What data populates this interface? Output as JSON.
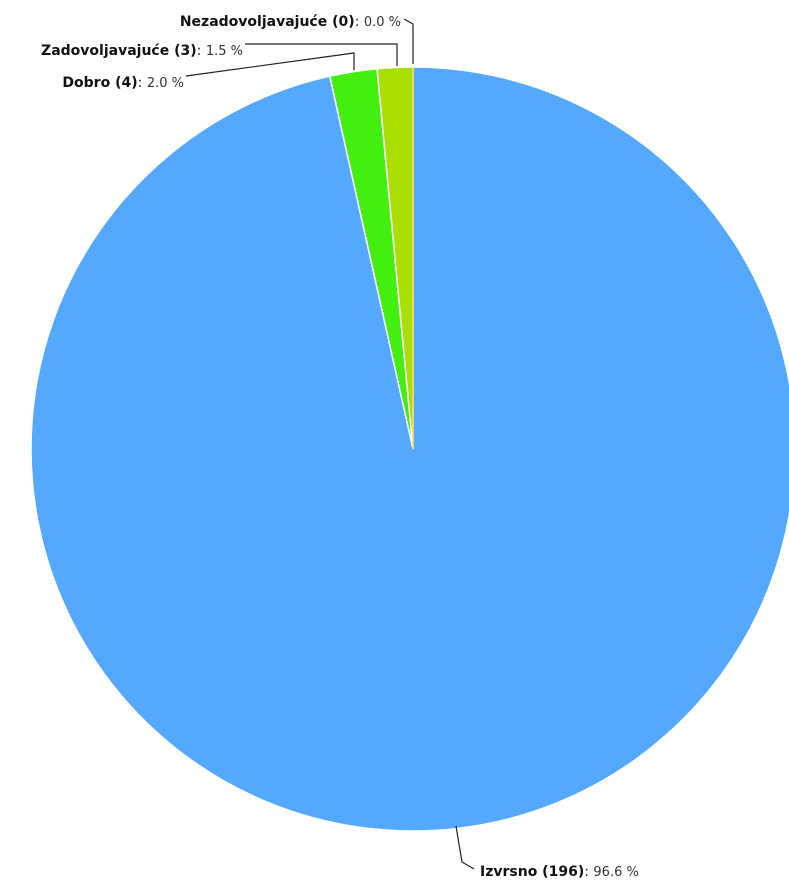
{
  "chart_data": {
    "type": "pie",
    "slices": [
      {
        "label": "Izvrsno",
        "count": 196,
        "percent_label": "96.6 %",
        "value": 96.6,
        "color": "#55a8ff"
      },
      {
        "label": "Dobro",
        "count": 4,
        "percent_label": "2.0 %",
        "value": 2.0,
        "color": "#44ee11"
      },
      {
        "label": "Zadovoljavajuće",
        "count": 3,
        "percent_label": "1.5 %",
        "value": 1.5,
        "color": "#aadd00"
      },
      {
        "label": "Nezadovoljavajuće",
        "count": 0,
        "percent_label": "0.0 %",
        "value": 0.0,
        "color": "#ffcc00"
      }
    ],
    "start_angle": "top",
    "direction": "clockwise",
    "legend": "none"
  }
}
